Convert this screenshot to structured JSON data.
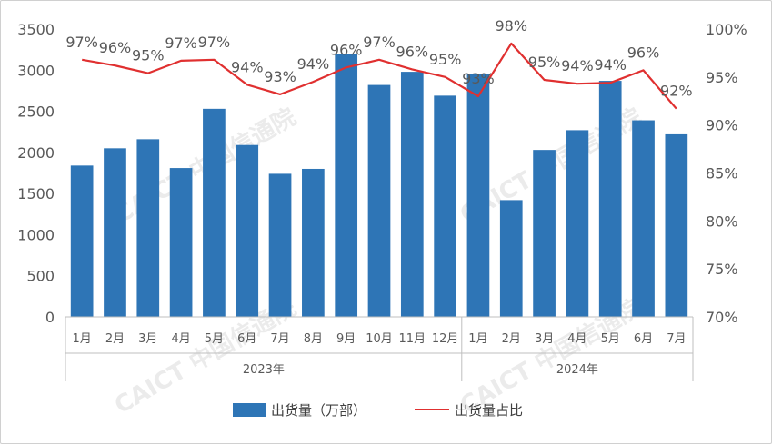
{
  "chart_data": {
    "type": "bar+line",
    "categories": [
      "1月",
      "2月",
      "3月",
      "4月",
      "5月",
      "6月",
      "7月",
      "8月",
      "9月",
      "10月",
      "11月",
      "12月",
      "1月",
      "2月",
      "3月",
      "4月",
      "5月",
      "6月",
      "7月"
    ],
    "groups": [
      {
        "label": "2023年",
        "start": 0,
        "end": 11
      },
      {
        "label": "2024年",
        "start": 12,
        "end": 18
      }
    ],
    "series": [
      {
        "name": "出货量（万部）",
        "type": "bar",
        "axis": "left",
        "color": "#2e75b6",
        "values": [
          1840,
          2050,
          2160,
          1810,
          2530,
          2090,
          1740,
          1800,
          3200,
          2820,
          2980,
          2690,
          2950,
          1420,
          2030,
          2270,
          2870,
          2390,
          2220
        ]
      },
      {
        "name": "出货量占比",
        "type": "line",
        "axis": "right",
        "color": "#e03030",
        "values": [
          96.8,
          96.2,
          95.4,
          96.7,
          96.8,
          94.2,
          93.2,
          94.5,
          96.0,
          96.8,
          95.8,
          95.0,
          93.0,
          98.5,
          94.7,
          94.3,
          94.4,
          95.7,
          91.7
        ],
        "labels": [
          "97%",
          "96%",
          "95%",
          "97%",
          "97%",
          "94%",
          "93%",
          "94%",
          "96%",
          "97%",
          "96%",
          "95%",
          "93%",
          "98%",
          "95%",
          "94%",
          "94%",
          "96%",
          "92%"
        ]
      }
    ],
    "left_axis": {
      "min": 0,
      "max": 3500,
      "step": 500,
      "ticks": [
        "0",
        "500",
        "1000",
        "1500",
        "2000",
        "2500",
        "3000",
        "3500"
      ]
    },
    "right_axis": {
      "min": 70,
      "max": 100,
      "step": 5,
      "ticks": [
        "70%",
        "75%",
        "80%",
        "85%",
        "90%",
        "95%",
        "100%"
      ]
    },
    "legend": "bottom",
    "grid": false
  },
  "watermark": "CAICT 中国信通院"
}
